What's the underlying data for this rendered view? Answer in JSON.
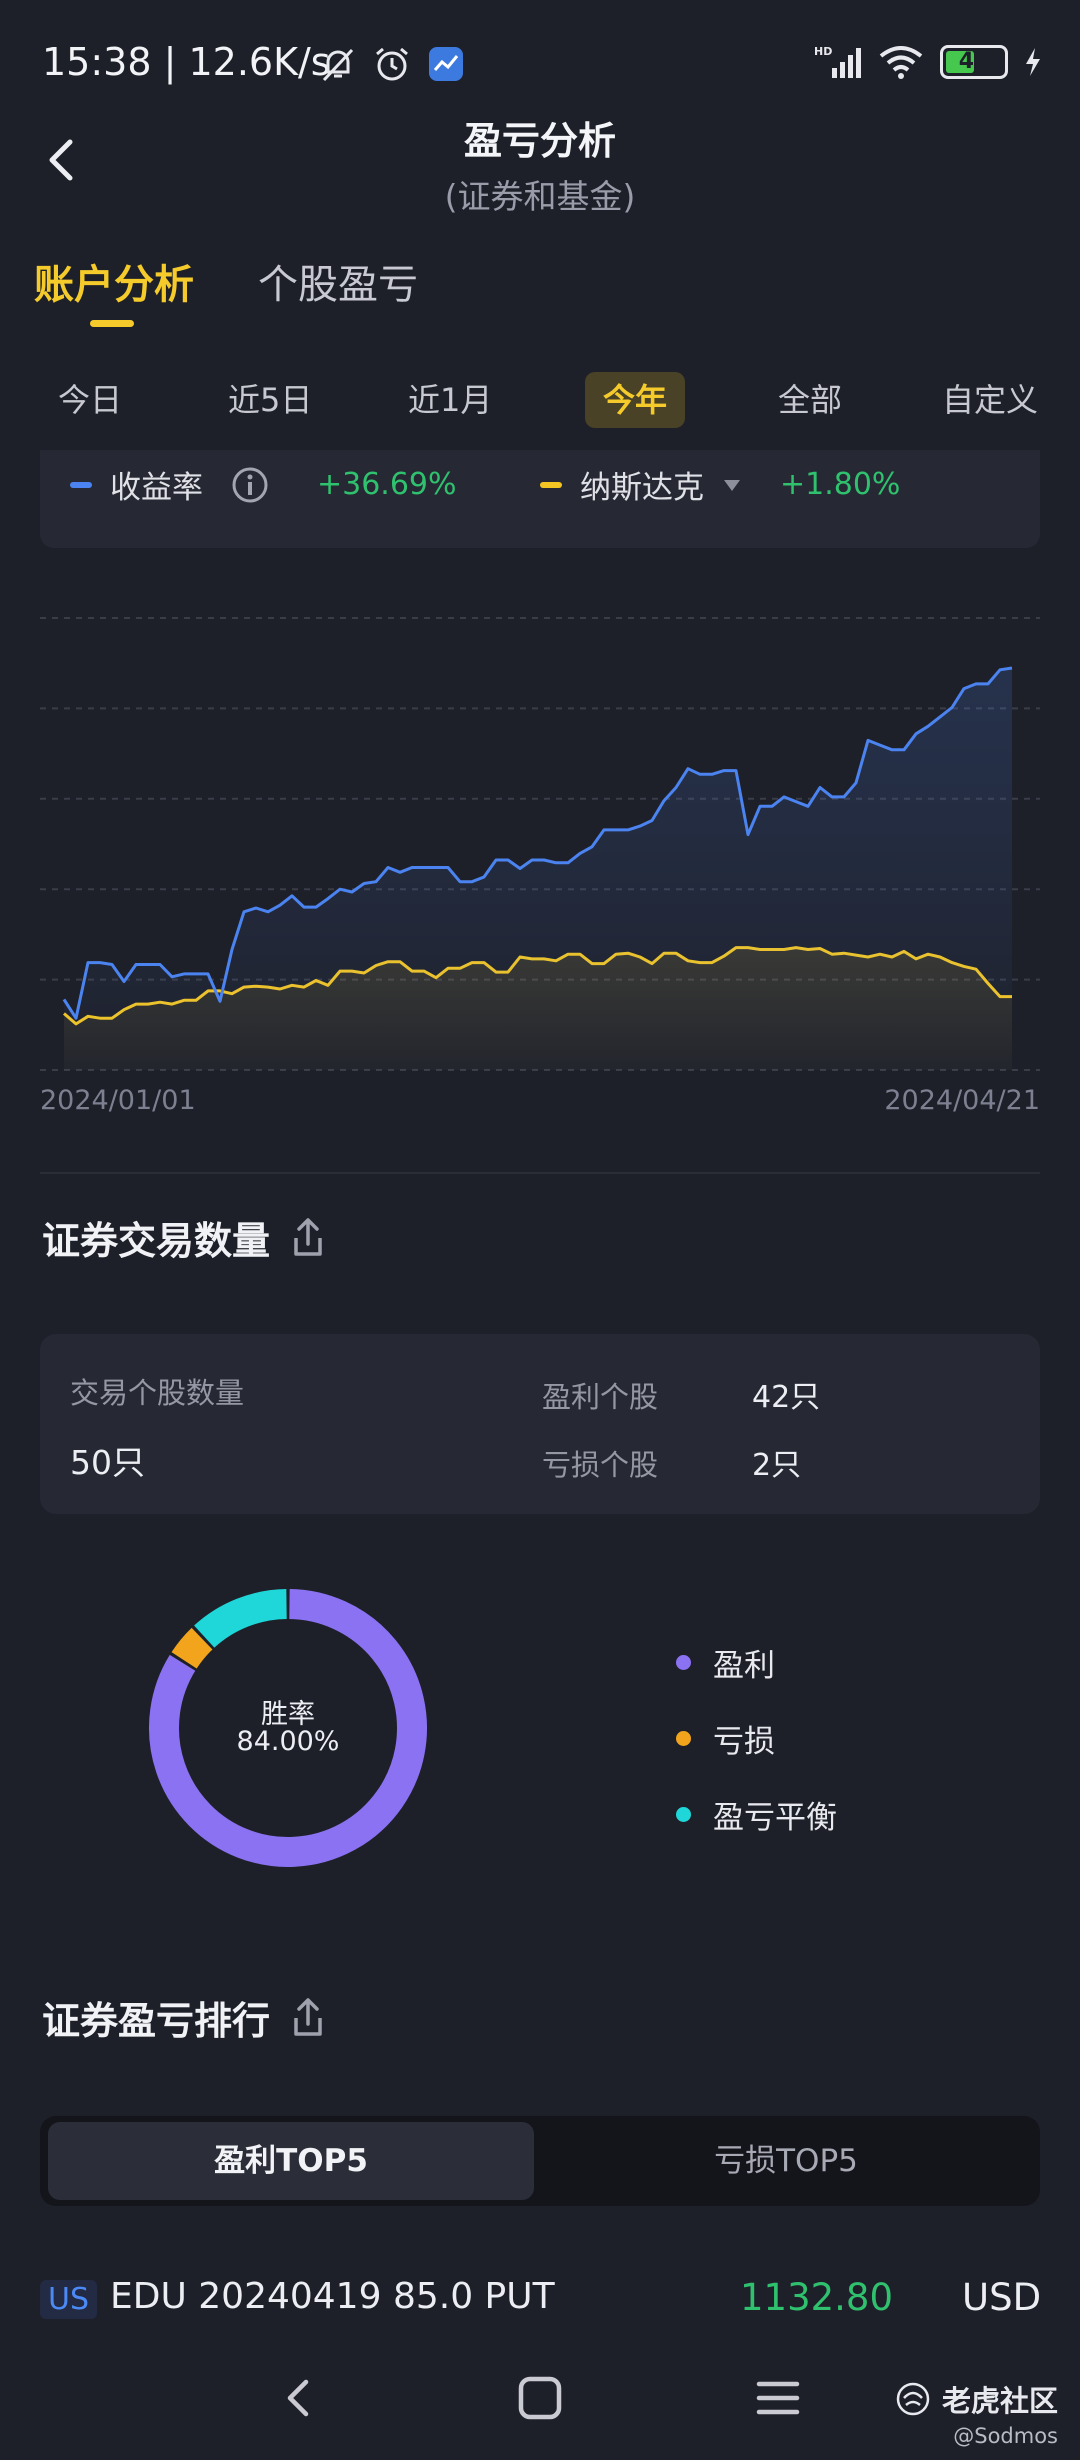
{
  "status_bar": {
    "time_speed": "15:38 | 12.6K/s",
    "battery": "47",
    "network": "HD"
  },
  "header": {
    "title": "盈亏分析",
    "subtitle": "(证券和基金)"
  },
  "main_tabs": [
    {
      "label": "账户分析"
    },
    {
      "label": "个股盈亏"
    }
  ],
  "periods": [
    {
      "label": "今日"
    },
    {
      "label": "近5日"
    },
    {
      "label": "近1月"
    },
    {
      "label": "今年"
    },
    {
      "label": "全部"
    },
    {
      "label": "自定义"
    }
  ],
  "legend": {
    "return": {
      "label": "收益率",
      "value": "+36.69%",
      "color": "#4b84f0"
    },
    "benchmark": {
      "label": "纳斯达克",
      "value": "+1.80%",
      "color": "#f4c623"
    }
  },
  "chart_data": {
    "type": "line",
    "x_start_label": "2024/01/01",
    "x_end_label": "2024/04/21",
    "ylim": [
      -6,
      42
    ],
    "grid": true,
    "series": [
      {
        "name": "收益率",
        "color": "#4b84f0",
        "values": [
          1.5,
          -0.5,
          5.4,
          5.4,
          5.2,
          3.4,
          5.2,
          5.2,
          5.2,
          3.9,
          4.2,
          4.2,
          4.2,
          1.3,
          6.8,
          10.8,
          11.2,
          10.8,
          11.5,
          12.5,
          11.3,
          11.3,
          12.2,
          13.2,
          12.9,
          13.8,
          14.0,
          15.5,
          15.0,
          15.5,
          15.5,
          15.5,
          15.5,
          14.0,
          14.0,
          14.5,
          16.3,
          16.3,
          15.4,
          16.3,
          16.3,
          16.0,
          16.0,
          17.0,
          17.7,
          19.5,
          19.5,
          19.5,
          19.9,
          20.5,
          22.6,
          24.0,
          26.0,
          25.4,
          25.4,
          25.8,
          25.8,
          19.0,
          22.0,
          22.0,
          23.0,
          22.5,
          22.0,
          24.0,
          23.0,
          23.0,
          24.5,
          29.0,
          28.5,
          28.0,
          28.0,
          29.7,
          30.5,
          31.5,
          32.5,
          34.5,
          35.0,
          35.0,
          36.5,
          36.69
        ]
      },
      {
        "name": "纳斯达克",
        "color": "#f4c623",
        "values": [
          0,
          -1.1,
          -0.3,
          -0.5,
          -0.5,
          0.4,
          1.0,
          1.0,
          1.2,
          1.0,
          1.4,
          1.4,
          2.4,
          2.4,
          2.1,
          2.8,
          2.9,
          2.8,
          2.6,
          3.0,
          2.8,
          3.5,
          3.0,
          4.5,
          4.5,
          4.3,
          5.1,
          5.5,
          5.5,
          4.5,
          4.5,
          3.8,
          4.8,
          4.8,
          5.4,
          5.4,
          4.4,
          4.4,
          6.0,
          5.8,
          5.8,
          5.6,
          6.3,
          6.3,
          5.3,
          5.3,
          6.3,
          6.4,
          6.0,
          5.3,
          6.4,
          6.4,
          5.6,
          5.4,
          5.4,
          6.1,
          7.0,
          7.0,
          6.8,
          6.8,
          6.8,
          7.0,
          6.8,
          6.9,
          6.3,
          6.4,
          6.2,
          6.0,
          6.3,
          6.0,
          6.6,
          5.8,
          6.3,
          6.0,
          5.4,
          5.0,
          4.7,
          3.2,
          1.8,
          1.8
        ]
      }
    ]
  },
  "trade_count": {
    "title": "证券交易数量",
    "total_label": "交易个股数量",
    "total_value": "50只",
    "profit_label": "盈利个股",
    "profit_value": "42只",
    "loss_label": "亏损个股",
    "loss_value": "2只"
  },
  "donut": {
    "center_label": "胜率",
    "center_value": "84.00%",
    "slices": [
      {
        "label": "盈利",
        "value": 42,
        "color": "#8b72f2"
      },
      {
        "label": "亏损",
        "value": 2,
        "color": "#f2a41c"
      },
      {
        "label": "盈亏平衡",
        "value": 6,
        "color": "#1fd6d8"
      }
    ]
  },
  "ranking": {
    "title": "证券盈亏排行",
    "tab_profit": "盈利TOP5",
    "tab_loss": "亏损TOP5",
    "rows": [
      {
        "market": "US",
        "name": "EDU 20240419 85.0 PUT",
        "value": "1132.80",
        "currency": "USD"
      }
    ]
  },
  "watermark": {
    "brand": "老虎社区",
    "user": "@Sodmos"
  }
}
